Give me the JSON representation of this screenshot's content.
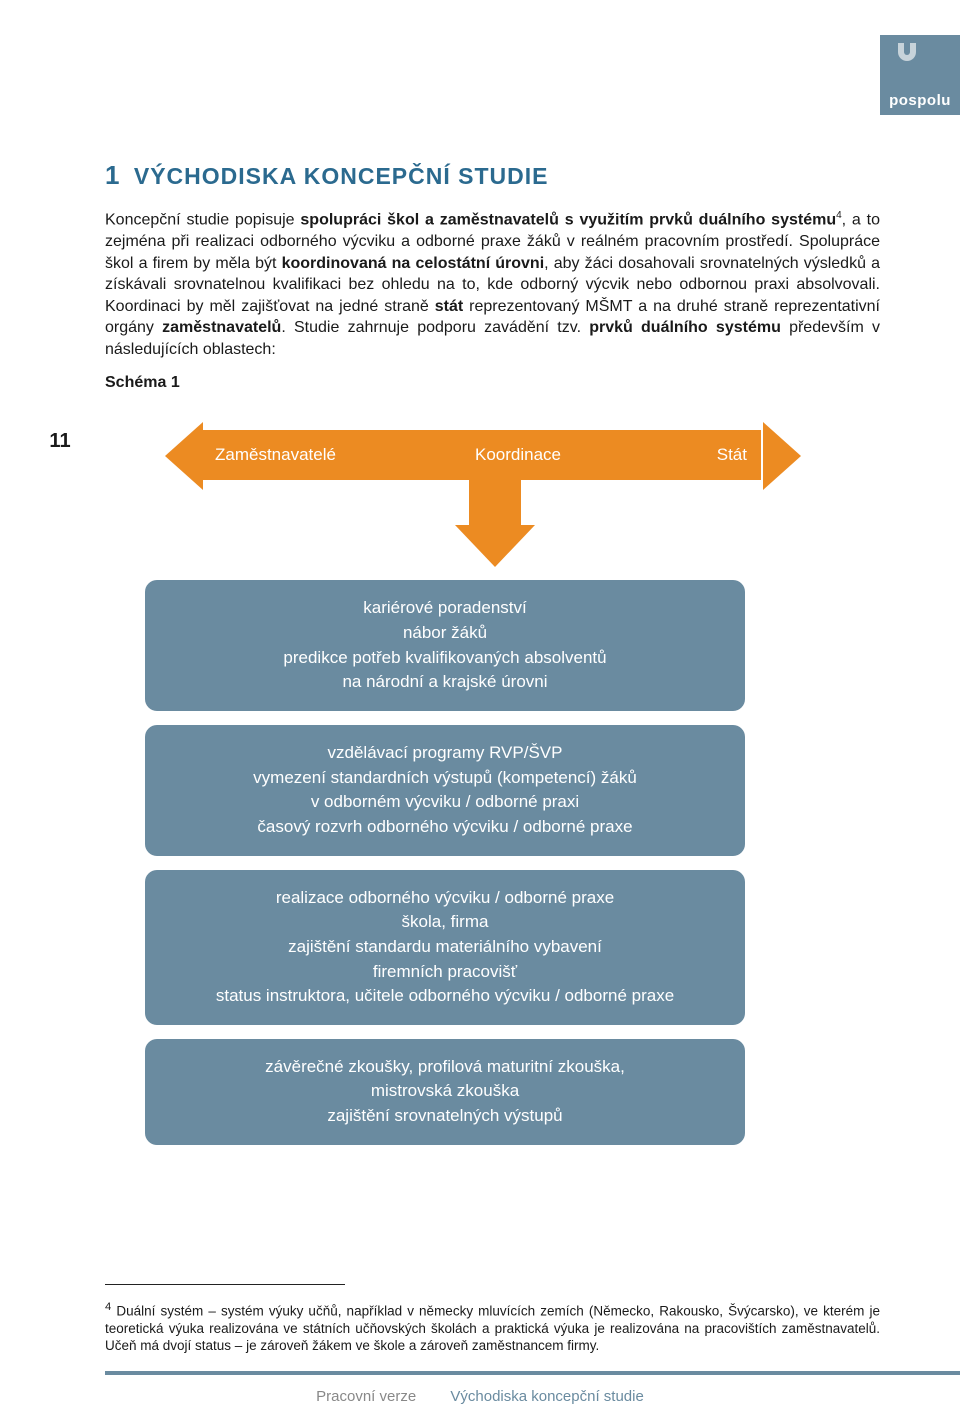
{
  "logo": {
    "text": "pospolu",
    "bg": "#6a8ba0",
    "accent": "#c7d3da"
  },
  "page_number": "11",
  "heading": {
    "num": "1",
    "text": "VÝCHODISKA KONCEPČNÍ STUDIE"
  },
  "heading_color": "#2b6a8f",
  "paragraph_parts": {
    "p1": "Koncepční studie popisuje ",
    "b1": "spolupráci škol a zaměstnavatelů s využitím prvků duálního systému",
    "sup": "4",
    "p2": ", a to zejména při realizaci odborného výcviku a odborné praxe žáků v reálném pracovním prostředí. Spolupráce škol a firem by měla být ",
    "b2": "koordinovaná na celostátní úrovni",
    "p3": ", aby žáci dosahovali srovnatelných výsledků a získávali srovnatelnou kvalifikaci bez ohledu na to, kde odborný výcvik nebo odbornou praxi absolvovali. Koordinaci by měl zajišťovat na jedné straně ",
    "b3": "stát",
    "p4": " reprezentovaný MŠMT a na druhé straně reprezentativní orgány ",
    "b4": "zaměstnavatelů",
    "p5": ". Studie zahrnuje podporu zavádění tzv. ",
    "b5": "prvků duálního systému",
    "p6": " především v následujících oblastech:"
  },
  "schema_label": "Schéma 1",
  "diagram": {
    "arrow_color": "#ec8b22",
    "arrow_left_label": "Zaměstnavatelé",
    "arrow_mid_label": "Koordinace",
    "arrow_right_label": "Stát",
    "box_border": "#6a8ba0",
    "box_bg": "#6a8ba0",
    "box_text_color": "#ffffff",
    "boxes": [
      "kariérové poradenství\nnábor žáků\npredikce potřeb kvalifikovaných absolventů\nna národní a krajské úrovni",
      "vzdělávací programy RVP/ŠVP\nvymezení standardních výstupů (kompetencí) žáků\nv odborném výcviku / odborné praxi\nčasový rozvrh odborného výcviku / odborné praxe",
      "realizace odborného výcviku / odborné praxe\nškola, firma\nzajištění standardu materiálního vybavení\nfiremních pracovišť\nstatus instruktora, učitele odborného výcviku / odborné praxe",
      "závěrečné zkoušky, profilová maturitní zkouška,\nmistrovská zkouška\nzajištění srovnatelných výstupů"
    ]
  },
  "footnote": {
    "num": "4",
    "text": " Duální systém – systém výuky učňů, například v německy mluvících zemích (Německo, Rakousko, Švýcarsko), ve kterém je teoretická výuka realizována ve státních učňovských školách a praktická výuka je realizována na pracovištích zaměstnavatelů. Učeň má dvojí status – je zároveň žákem ve škole a zároveň zaměstnancem firmy."
  },
  "footer": {
    "left": "Pracovní verze",
    "right": "Východiska koncepční studie",
    "rule_color": "#6a8ba0"
  }
}
